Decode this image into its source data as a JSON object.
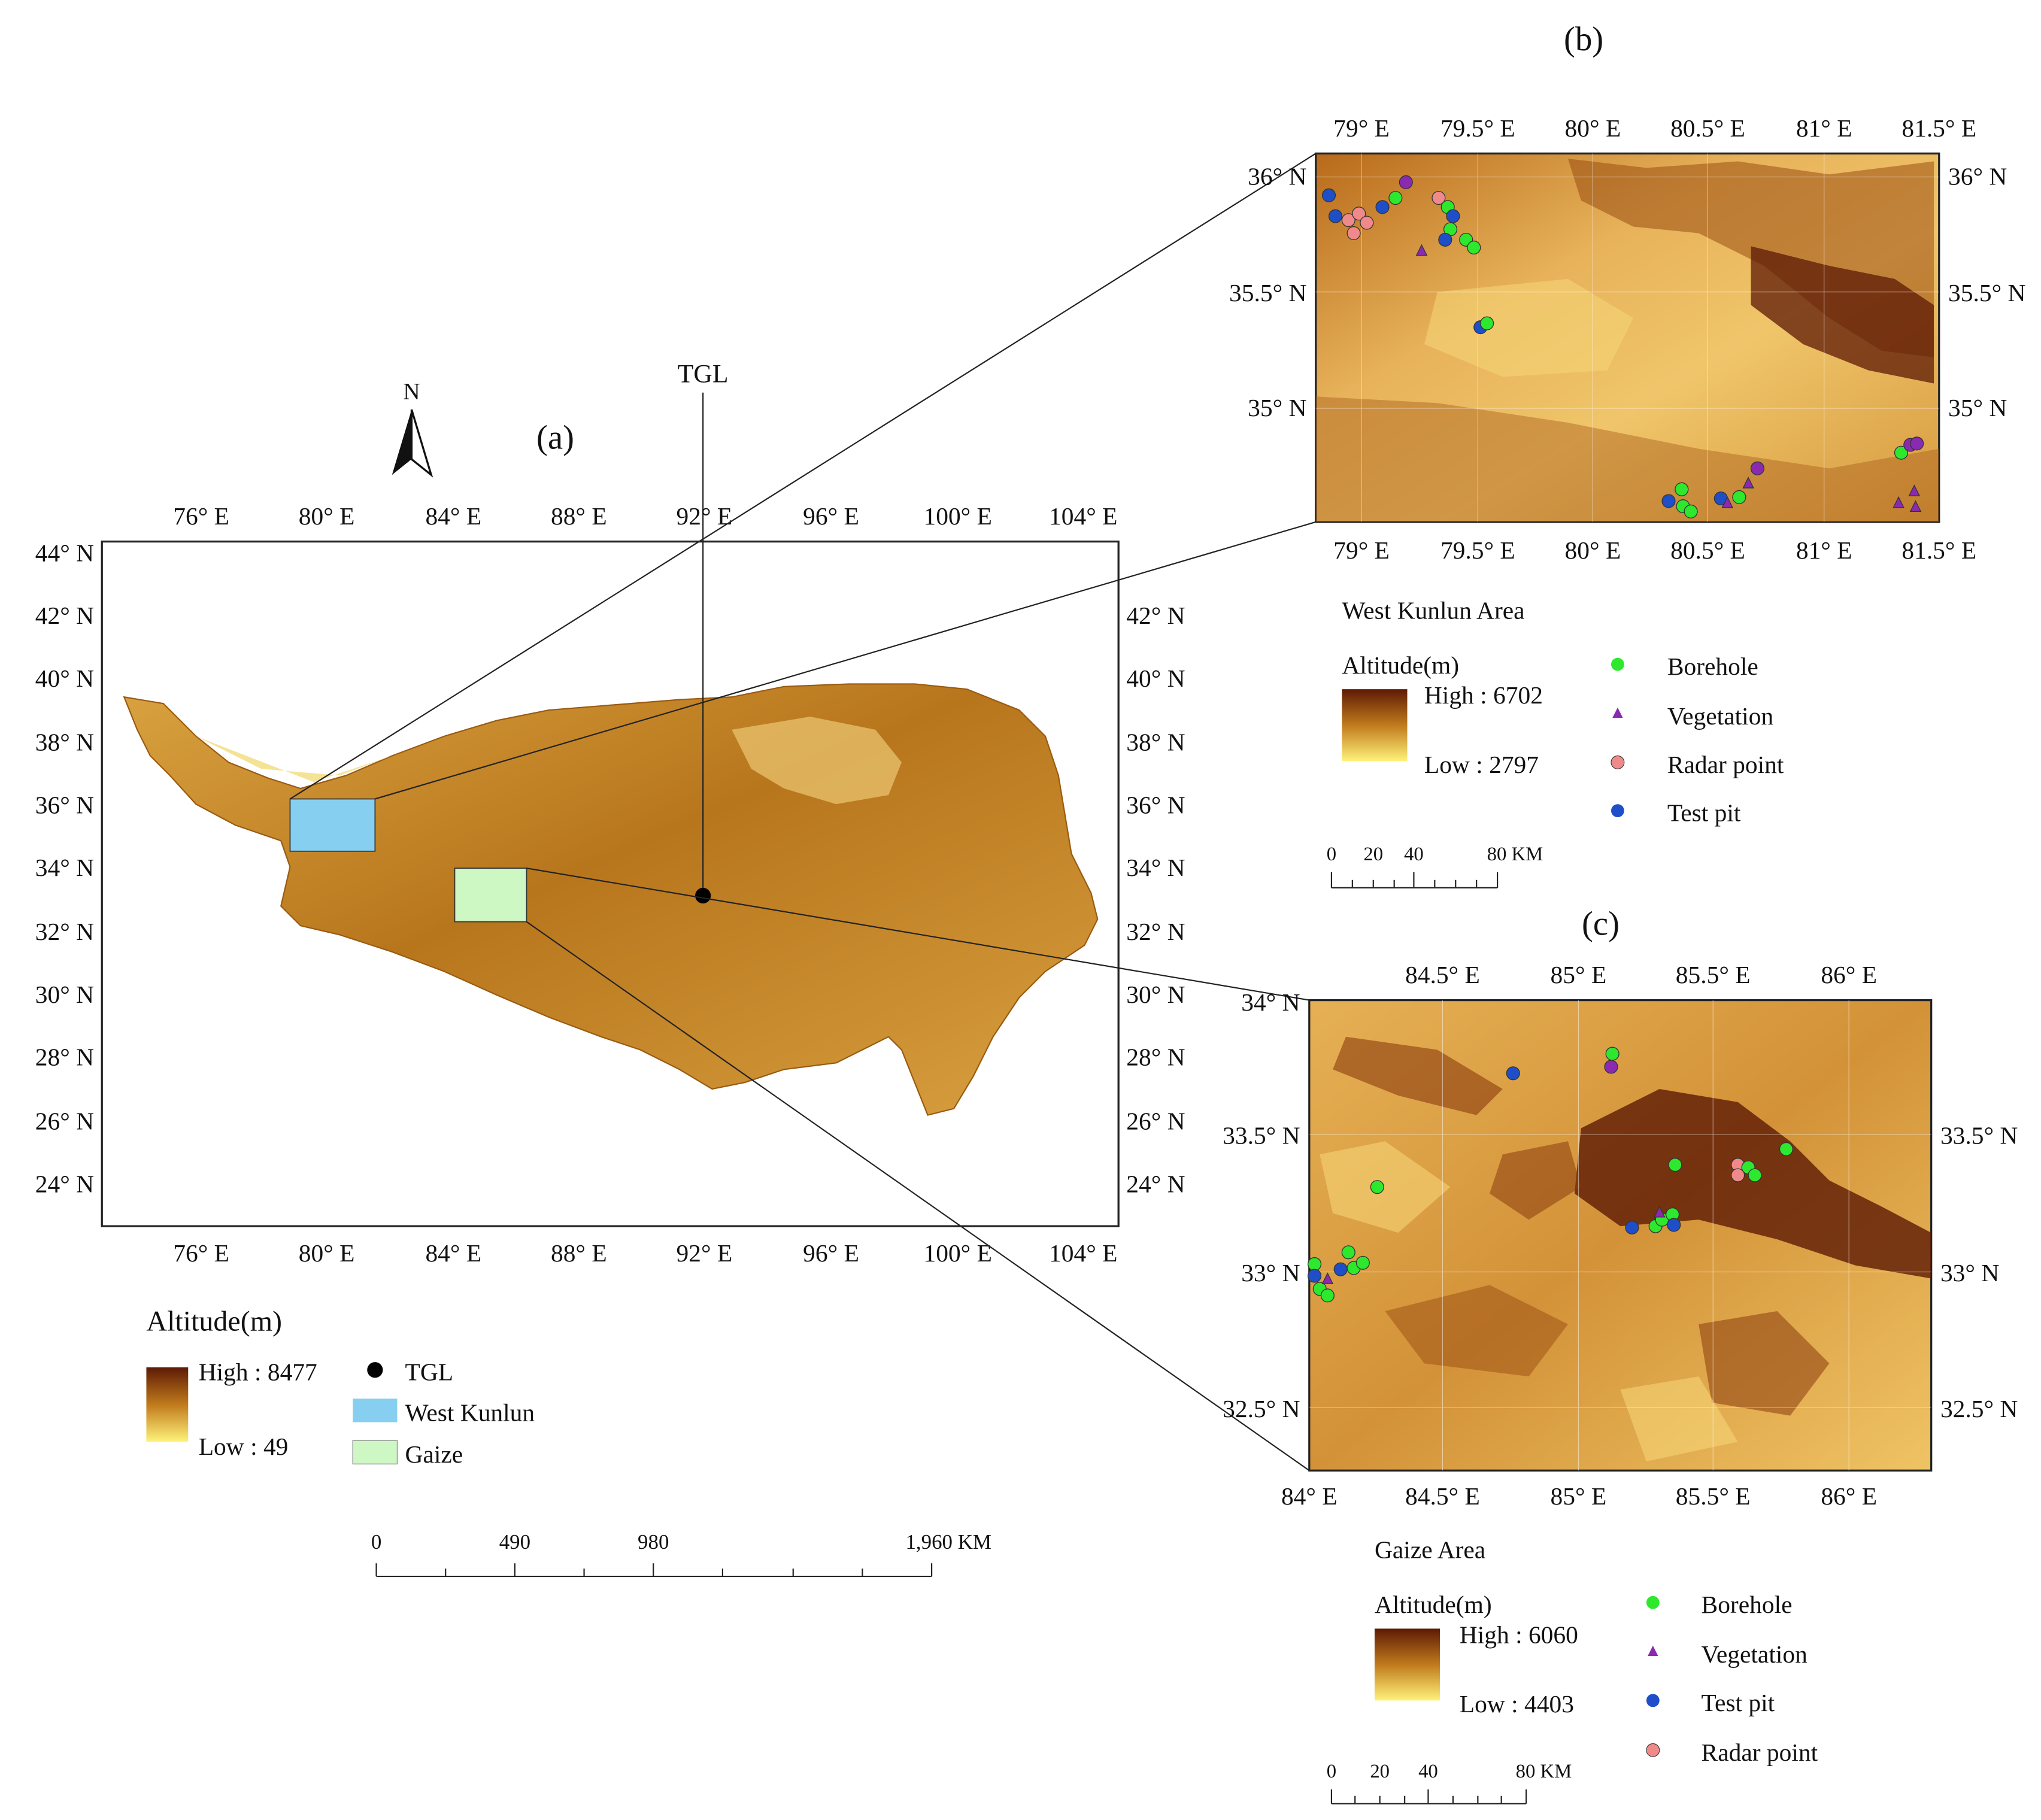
{
  "panel_a": {
    "label": "(a)",
    "north": "N",
    "tgl_label": "TGL",
    "lon_labels": [
      "76° E",
      "80° E",
      "84° E",
      "88° E",
      "92° E",
      "96° E",
      "100° E",
      "104° E"
    ],
    "lat_labels": [
      "44° N",
      "42° N",
      "40° N",
      "38° N",
      "36° N",
      "34° N",
      "32° N",
      "30° N",
      "28° N",
      "26° N",
      "24° N"
    ],
    "legend": {
      "title": "Altitude(m)",
      "high": "High : 8477",
      "low": "Low : 49",
      "items": [
        {
          "label": "TGL",
          "symbol": "black-dot",
          "color": "#000000"
        },
        {
          "label": "West Kunlun",
          "symbol": "rect",
          "color": "#87cff0"
        },
        {
          "label": "Gaize",
          "symbol": "rect",
          "color": "#cdf7c3"
        }
      ]
    },
    "scale": {
      "ticks": [
        "0",
        "490",
        "980",
        "1,960 KM"
      ]
    }
  },
  "panel_b": {
    "label": "(b)",
    "area_title": "West Kunlun Area",
    "lon_labels": [
      "79° E",
      "79.5° E",
      "80° E",
      "80.5° E",
      "81° E",
      "81.5° E"
    ],
    "lat_labels": [
      "36° N",
      "35.5° N",
      "35° N"
    ],
    "legend": {
      "title": "Altitude(m)",
      "high": "High : 6702",
      "low": "Low : 2797",
      "items": [
        {
          "label": "Borehole",
          "color": "#2ee82e",
          "shape": "circle"
        },
        {
          "label": "Vegetation",
          "color": "#8a2ab0",
          "shape": "triangle"
        },
        {
          "label": "Radar point",
          "color": "#f08a8a",
          "shape": "circle"
        },
        {
          "label": "Test pit",
          "color": "#1e4fc8",
          "shape": "circle"
        }
      ]
    },
    "scale": {
      "ticks": [
        "0",
        "20",
        "40",
        "80 KM"
      ]
    }
  },
  "panel_c": {
    "label": "(c)",
    "area_title": "Gaize Area",
    "lon_labels_top": [
      "84.5° E",
      "85° E",
      "85.5° E",
      "86° E"
    ],
    "lon_labels_bottom": [
      "84° E",
      "84.5° E",
      "85° E",
      "85.5° E",
      "86° E"
    ],
    "lat_labels_left": [
      "34° N",
      "33.5° N",
      "33° N",
      "32.5° N"
    ],
    "lat_labels_right": [
      "33.5° N",
      "33° N",
      "32.5° N"
    ],
    "legend": {
      "title": "Altitude(m)",
      "high": "High : 6060",
      "low": "Low : 4403",
      "items": [
        {
          "label": "Borehole",
          "color": "#2ee82e",
          "shape": "circle"
        },
        {
          "label": "Vegetation",
          "color": "#8a2ab0",
          "shape": "triangle"
        },
        {
          "label": "Test pit",
          "color": "#1e4fc8",
          "shape": "circle"
        },
        {
          "label": "Radar point",
          "color": "#f08a8a",
          "shape": "circle"
        }
      ]
    },
    "scale": {
      "ticks": [
        "0",
        "20",
        "40",
        "80 KM"
      ]
    }
  },
  "colors": {
    "high": "#5e1a05",
    "mid": "#c07a1c",
    "low": "#fff27a",
    "plateau": "#c98a2a"
  }
}
